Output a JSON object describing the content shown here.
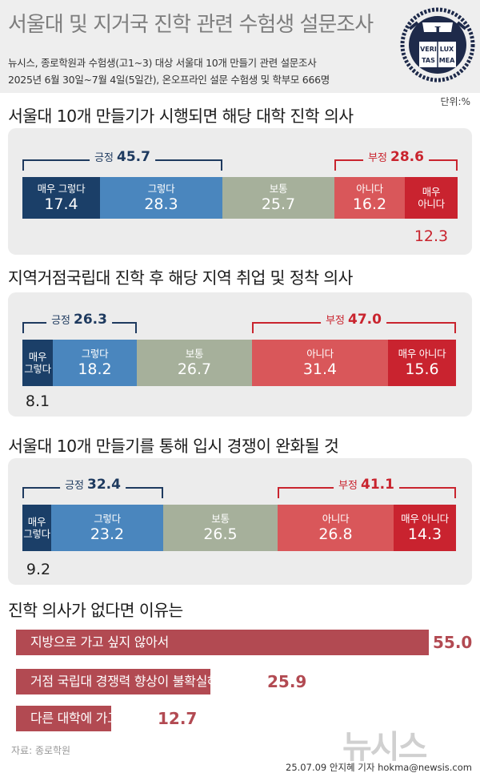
{
  "header": {
    "title": "서울대 및 지거국 진학 관련 수험생 설문조사",
    "subtitle_line1": "뉴시스, 종로학원과 수험생(고1~3) 대상 서울대 10개 만들기 관련 설문조사",
    "subtitle_line2": "2025년 6월 30일~7월 4일(5일간), 온오프라인 설문 수험생 및 학부모 666명",
    "logo_text": [
      "VERI",
      "LUX",
      "TAS",
      "MEA"
    ]
  },
  "unit_label": "단위:%",
  "colors": {
    "strongly_agree": "#1b3f68",
    "agree": "#4a86be",
    "neutral": "#a6b09b",
    "disagree": "#d9575a",
    "strongly_disagree": "#c9232f",
    "reason_bar": "#b24a52"
  },
  "chart_data": [
    {
      "type": "bar",
      "stacked": true,
      "orientation": "horizontal",
      "title": "서울대 10개 만들기가 시행되면 해당 대학 진학 의사",
      "categories": [
        "매우 그렇다",
        "그렇다",
        "보통",
        "아니다",
        "매우 아니다"
      ],
      "values": [
        17.4,
        28.3,
        25.7,
        16.2,
        12.3
      ],
      "segment_labels": [
        "매우 그렇다",
        "그렇다",
        "보통",
        "아니다",
        "매우\n아니다"
      ],
      "positive": {
        "label": "긍정",
        "value": 45.7
      },
      "negative": {
        "label": "부정",
        "value": 28.6
      }
    },
    {
      "type": "bar",
      "stacked": true,
      "orientation": "horizontal",
      "title": "지역거점국립대 진학 후 해당 지역 취업 및 정착 의사",
      "categories": [
        "매우 그렇다",
        "그렇다",
        "보통",
        "아니다",
        "매우 아니다"
      ],
      "values": [
        8.1,
        18.2,
        26.7,
        31.4,
        15.6
      ],
      "segment_labels": [
        "매우\n그렇다",
        "그렇다",
        "보통",
        "아니다",
        "매우 아니다"
      ],
      "positive": {
        "label": "긍정",
        "value": 26.3
      },
      "negative": {
        "label": "부정",
        "value": 47.0
      }
    },
    {
      "type": "bar",
      "stacked": true,
      "orientation": "horizontal",
      "title": "서울대 10개 만들기를 통해 입시 경쟁이 완화될 것",
      "categories": [
        "매우 그렇다",
        "그렇다",
        "보통",
        "아니다",
        "매우 아니다"
      ],
      "values": [
        9.2,
        23.2,
        26.5,
        26.8,
        14.3
      ],
      "segment_labels": [
        "매우\n그렇다",
        "그렇다",
        "보통",
        "아니다",
        "매우 아니다"
      ],
      "positive": {
        "label": "긍정",
        "value": 32.4
      },
      "negative": {
        "label": "부정",
        "value": 41.1
      }
    },
    {
      "type": "bar",
      "orientation": "horizontal",
      "title": "진학 의사가 없다면 이유는",
      "categories": [
        "지방으로 가고 싶지 않아서",
        "거점 국립대 경쟁력 향상이 불확실해서",
        "다른 대학에 가고 싶어서"
      ],
      "values": [
        55.0,
        25.9,
        12.7
      ]
    }
  ],
  "value_labels": {
    "chart0": [
      "17.4",
      "28.3",
      "25.7",
      "16.2",
      "12.3"
    ],
    "chart1": [
      "8.1",
      "18.2",
      "26.7",
      "31.4",
      "15.6"
    ],
    "chart2": [
      "9.2",
      "23.2",
      "26.5",
      "26.8",
      "14.3"
    ],
    "chart3": [
      "55.0",
      "25.9",
      "12.7"
    ],
    "pos": [
      "45.7",
      "26.3",
      "32.4"
    ],
    "neg": [
      "28.6",
      "47.0",
      "41.1"
    ]
  },
  "footer": {
    "source": "자료: 종로학원",
    "credit": "25.07.09 안지혜 기자 hokma@newsis.com",
    "watermark": "뉴시스"
  }
}
